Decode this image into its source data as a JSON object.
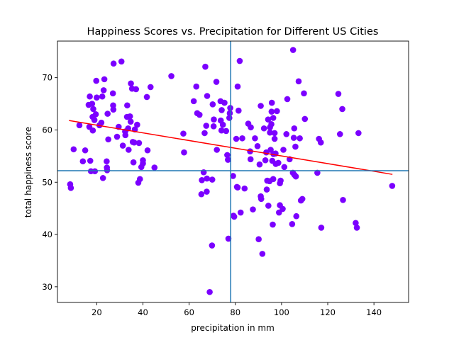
{
  "chart_data": {
    "type": "scatter",
    "title": "Happiness Scores vs. Precipitation for Different US Cities",
    "xlabel": "precipitation in mm",
    "ylabel": "total happiness score",
    "xlim": [
      3,
      155
    ],
    "ylim": [
      27,
      77
    ],
    "xticks": [
      20,
      40,
      60,
      80,
      100,
      120,
      140
    ],
    "yticks": [
      30,
      40,
      50,
      60,
      70
    ],
    "grid": false,
    "legend": "none",
    "point_color": "#7b00ff",
    "fit_color": "#ff0000",
    "crosshair_color": "#1f77b4",
    "mean_x": 78,
    "mean_y": 52.2,
    "fit_line": {
      "x": [
        8,
        148
      ],
      "y": [
        61.8,
        51.5
      ]
    },
    "points": [
      [
        8.5,
        49.6
      ],
      [
        8.8,
        48.9
      ],
      [
        10,
        56.3
      ],
      [
        12.5,
        60.9
      ],
      [
        14,
        54
      ],
      [
        15,
        56.1
      ],
      [
        16.5,
        64.8
      ],
      [
        16.8,
        60.6
      ],
      [
        17,
        66.4
      ],
      [
        17.2,
        54.1
      ],
      [
        17.5,
        52.1
      ],
      [
        18,
        65
      ],
      [
        18.2,
        62.5
      ],
      [
        18.3,
        59.9
      ],
      [
        18.5,
        64
      ],
      [
        19,
        61.9
      ],
      [
        19.2,
        52.1
      ],
      [
        19.6,
        63
      ],
      [
        19.8,
        69.4
      ],
      [
        20,
        66.2
      ],
      [
        21.2,
        60.9
      ],
      [
        22,
        61.4
      ],
      [
        22.4,
        66.4
      ],
      [
        22.7,
        50.8
      ],
      [
        23,
        67.6
      ],
      [
        23.3,
        69.7
      ],
      [
        24.3,
        54
      ],
      [
        24.4,
        52.8
      ],
      [
        24.5,
        52.3
      ],
      [
        24.7,
        63.1
      ],
      [
        25,
        58.2
      ],
      [
        27,
        67
      ],
      [
        27.1,
        64.7
      ],
      [
        27.2,
        63.9
      ],
      [
        27.3,
        72.7
      ],
      [
        28.8,
        58.7
      ],
      [
        29.5,
        60.6
      ],
      [
        30.7,
        73.1
      ],
      [
        31.3,
        57
      ],
      [
        32.3,
        59.7
      ],
      [
        32.4,
        59
      ],
      [
        33.1,
        62.5
      ],
      [
        33.2,
        64.7
      ],
      [
        33.6,
        60.3
      ],
      [
        33.8,
        56.2
      ],
      [
        34.4,
        62.6
      ],
      [
        34.7,
        61.6
      ],
      [
        34.8,
        68.9
      ],
      [
        35.3,
        67.9
      ],
      [
        35.6,
        57.7
      ],
      [
        35.9,
        53.8
      ],
      [
        36.2,
        57.6
      ],
      [
        36.5,
        60.1
      ],
      [
        37,
        67.8
      ],
      [
        37.5,
        61
      ],
      [
        38,
        49.9
      ],
      [
        38.3,
        57.5
      ],
      [
        38.7,
        50.6
      ],
      [
        39.3,
        52.9
      ],
      [
        40,
        54.2
      ],
      [
        40,
        53.6
      ],
      [
        41.7,
        66.3
      ],
      [
        42,
        56.1
      ],
      [
        43.3,
        68.2
      ],
      [
        45,
        52.8
      ],
      [
        52.3,
        70.3
      ],
      [
        57.5,
        59.3
      ],
      [
        57.8,
        55.7
      ],
      [
        62,
        65.5
      ],
      [
        63.1,
        68.3
      ],
      [
        63.5,
        63.2
      ],
      [
        64.5,
        62.9
      ],
      [
        65.3,
        47.7
      ],
      [
        65.5,
        50.4
      ],
      [
        66.3,
        51.9
      ],
      [
        66.7,
        59.4
      ],
      [
        67,
        72.1
      ],
      [
        67.4,
        60.8
      ],
      [
        67.6,
        48.2
      ],
      [
        67.7,
        50.7
      ],
      [
        67.8,
        66.5
      ],
      [
        68.9,
        29
      ],
      [
        69.9,
        37.9
      ],
      [
        70,
        50.5
      ],
      [
        70.2,
        64.9
      ],
      [
        70.6,
        60.7
      ],
      [
        70.7,
        62
      ],
      [
        71.8,
        69.2
      ],
      [
        72,
        56.2
      ],
      [
        73.6,
        65.5
      ],
      [
        73.7,
        61.8
      ],
      [
        74,
        59.9
      ],
      [
        74.1,
        63.8
      ],
      [
        74.6,
        61
      ],
      [
        75.3,
        65.2
      ],
      [
        76,
        59.8
      ],
      [
        76.5,
        55.2
      ],
      [
        76.8,
        54.3
      ],
      [
        77,
        39.2
      ],
      [
        77.4,
        62.3
      ],
      [
        77.6,
        63.2
      ],
      [
        77.8,
        64.2
      ],
      [
        79,
        51.2
      ],
      [
        79.2,
        43.6
      ],
      [
        79.5,
        43.4
      ],
      [
        80.4,
        58.3
      ],
      [
        80.7,
        49.1
      ],
      [
        81,
        49
      ],
      [
        81,
        68.3
      ],
      [
        81.4,
        63.7
      ],
      [
        81.9,
        73.2
      ],
      [
        82.3,
        44.2
      ],
      [
        83,
        58.4
      ],
      [
        84,
        48.8
      ],
      [
        85.6,
        61.2
      ],
      [
        86.4,
        55.9
      ],
      [
        86.6,
        54.4
      ],
      [
        86.7,
        60.5
      ],
      [
        87.6,
        44.8
      ],
      [
        88.5,
        58.4
      ],
      [
        89.6,
        56.9
      ],
      [
        90.1,
        39.1
      ],
      [
        90.5,
        53.4
      ],
      [
        91,
        64.6
      ],
      [
        91,
        47.3
      ],
      [
        91.2,
        46.8
      ],
      [
        91.7,
        36.3
      ],
      [
        92.4,
        60.3
      ],
      [
        93,
        54.2
      ],
      [
        93.4,
        55.7
      ],
      [
        93.6,
        48.6
      ],
      [
        93.8,
        50.3
      ],
      [
        94.2,
        62
      ],
      [
        94.3,
        45.5
      ],
      [
        94.8,
        50.2
      ],
      [
        95,
        59.5
      ],
      [
        95,
        60.5
      ],
      [
        95.3,
        56.2
      ],
      [
        95.6,
        61.1
      ],
      [
        95.7,
        63.5
      ],
      [
        95.8,
        65.2
      ],
      [
        96,
        54.1
      ],
      [
        96.2,
        41.9
      ],
      [
        96.4,
        50.6
      ],
      [
        96.4,
        62.3
      ],
      [
        96.5,
        55.4
      ],
      [
        97,
        58.3
      ],
      [
        97,
        59.4
      ],
      [
        97.4,
        55.5
      ],
      [
        97.5,
        53.5
      ],
      [
        98,
        63.6
      ],
      [
        98.6,
        53.7
      ],
      [
        98.9,
        44.2
      ],
      [
        99.3,
        49.8
      ],
      [
        99.3,
        45.6
      ],
      [
        99.6,
        50.3
      ],
      [
        100.5,
        44.9
      ],
      [
        100.8,
        56.2
      ],
      [
        101.2,
        52.9
      ],
      [
        102.1,
        59.2
      ],
      [
        102.5,
        65.9
      ],
      [
        103.5,
        54.4
      ],
      [
        104.6,
        42
      ],
      [
        104.9,
        51.8
      ],
      [
        105,
        75.3
      ],
      [
        105.3,
        58.5
      ],
      [
        105.5,
        60.3
      ],
      [
        105.6,
        51.4
      ],
      [
        106,
        56.8
      ],
      [
        106.2,
        51.1
      ],
      [
        106.4,
        43.5
      ],
      [
        107.4,
        69.3
      ],
      [
        107.9,
        58.4
      ],
      [
        108.4,
        46.5
      ],
      [
        109,
        46.8
      ],
      [
        109.7,
        67
      ],
      [
        110.1,
        62.1
      ],
      [
        115.5,
        51.8
      ],
      [
        116.2,
        58.3
      ],
      [
        117,
        57.6
      ],
      [
        117.2,
        41.3
      ],
      [
        124.6,
        66.9
      ],
      [
        125.3,
        59.2
      ],
      [
        126.3,
        64
      ],
      [
        126.6,
        46.6
      ],
      [
        132.1,
        42.2
      ],
      [
        132.6,
        41.3
      ],
      [
        133.3,
        59.4
      ],
      [
        147.9,
        49.3
      ]
    ]
  }
}
